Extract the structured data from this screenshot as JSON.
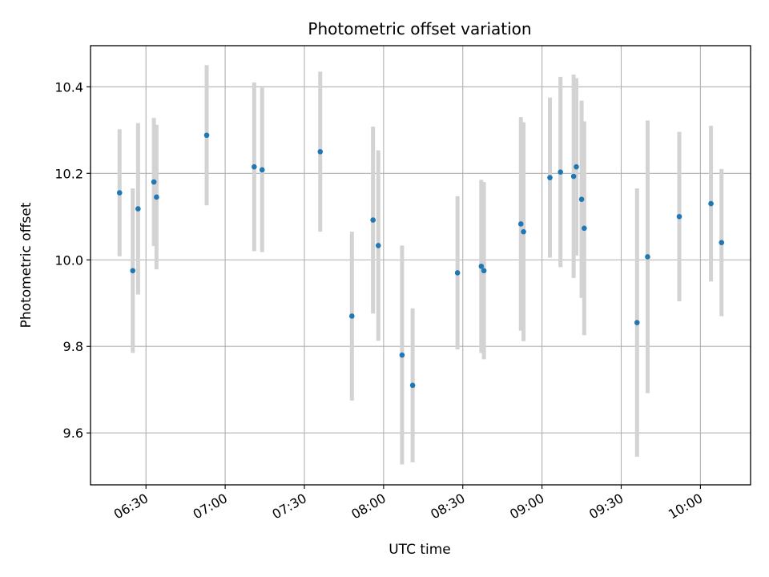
{
  "chart_data": {
    "type": "scatter",
    "title": "Photometric offset variation",
    "xlabel": "UTC time",
    "ylabel": "Photometric offset",
    "xlim": [
      "06:09",
      "10:19"
    ],
    "ylim": [
      9.48,
      10.495
    ],
    "grid": true,
    "x_ticks": [
      "06:30",
      "07:00",
      "07:30",
      "08:00",
      "08:30",
      "09:00",
      "09:30",
      "10:00"
    ],
    "y_ticks": [
      9.6,
      9.8,
      10.0,
      10.2,
      10.4
    ],
    "y_tick_labels": [
      "9.6",
      "9.8",
      "10.0",
      "10.2",
      "10.4"
    ],
    "colors": {
      "points": "#1f77b4",
      "errorbars": "#d3d3d3",
      "grid": "#b0b0b0"
    },
    "series": [
      {
        "points": [
          {
            "x": "06:20",
            "y": 10.155,
            "err": 0.147
          },
          {
            "x": "06:25",
            "y": 9.975,
            "err": 0.19
          },
          {
            "x": "06:27",
            "y": 10.118,
            "err": 0.198
          },
          {
            "x": "06:33",
            "y": 10.18,
            "err": 0.148
          },
          {
            "x": "06:34",
            "y": 10.145,
            "err": 0.167
          },
          {
            "x": "06:53",
            "y": 10.288,
            "err": 0.162
          },
          {
            "x": "07:11",
            "y": 10.215,
            "err": 0.195
          },
          {
            "x": "07:14",
            "y": 10.208,
            "err": 0.19
          },
          {
            "x": "07:36",
            "y": 10.25,
            "err": 0.185
          },
          {
            "x": "07:48",
            "y": 9.87,
            "err": 0.195
          },
          {
            "x": "07:56",
            "y": 10.092,
            "err": 0.216
          },
          {
            "x": "07:58",
            "y": 10.033,
            "err": 0.22
          },
          {
            "x": "08:07",
            "y": 9.78,
            "err": 0.253
          },
          {
            "x": "08:11",
            "y": 9.71,
            "err": 0.178
          },
          {
            "x": "08:28",
            "y": 9.97,
            "err": 0.177
          },
          {
            "x": "08:37",
            "y": 9.985,
            "err": 0.2
          },
          {
            "x": "08:38",
            "y": 9.975,
            "err": 0.205
          },
          {
            "x": "08:52",
            "y": 10.083,
            "err": 0.247
          },
          {
            "x": "08:53",
            "y": 10.065,
            "err": 0.253
          },
          {
            "x": "09:03",
            "y": 10.19,
            "err": 0.185
          },
          {
            "x": "09:07",
            "y": 10.203,
            "err": 0.22
          },
          {
            "x": "09:12",
            "y": 10.193,
            "err": 0.235
          },
          {
            "x": "09:13",
            "y": 10.215,
            "err": 0.205
          },
          {
            "x": "09:15",
            "y": 10.14,
            "err": 0.228
          },
          {
            "x": "09:16",
            "y": 10.073,
            "err": 0.247
          },
          {
            "x": "09:36",
            "y": 9.855,
            "err": 0.31
          },
          {
            "x": "09:40",
            "y": 10.007,
            "err": 0.315
          },
          {
            "x": "09:52",
            "y": 10.1,
            "err": 0.196
          },
          {
            "x": "10:04",
            "y": 10.13,
            "err": 0.18
          },
          {
            "x": "10:08",
            "y": 10.04,
            "err": 0.17
          }
        ]
      }
    ]
  }
}
